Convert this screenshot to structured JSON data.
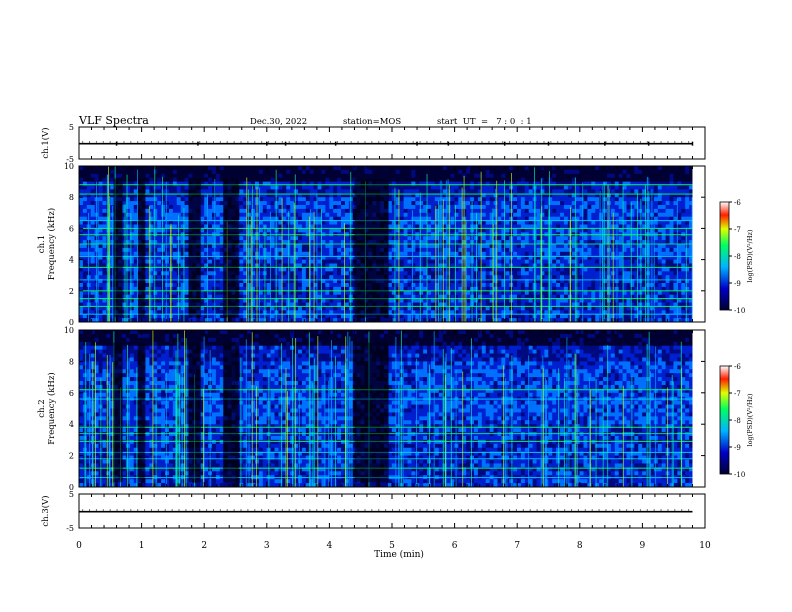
{
  "header": {
    "title": "VLF Spectra",
    "date": "Dec.30, 2022",
    "station": "station=MOS",
    "start": "start  UT  =   7 : 0  : 1"
  },
  "chart_data": [
    {
      "type": "line",
      "name": "ch1-voltage",
      "ylabel": "ch.1(V)",
      "ylim": [
        -5,
        5
      ],
      "yticks": [
        "5",
        "-5"
      ],
      "x_range_min": [
        0,
        9.8
      ],
      "trace_level": -0.2,
      "spikes_min": [
        0.6,
        1.9,
        3.0,
        3.3,
        4.1,
        5.4,
        5.9,
        6.8,
        7.5,
        8.4,
        9.1,
        9.8
      ]
    },
    {
      "type": "heatmap",
      "name": "ch1-spectrogram",
      "ylabel": "ch.1\nFrequency  (kHz)",
      "ylim": [
        0,
        10
      ],
      "yticks": [
        "0",
        "2",
        "4",
        "6",
        "8",
        "10"
      ],
      "colorbar": {
        "label": "log(PSD)(V²/Hz)",
        "range": [
          -10,
          -6
        ],
        "ticks": [
          "-6",
          "-7",
          "-8",
          "-9",
          "-10"
        ]
      },
      "bands_khz": [
        0.5,
        1.0,
        1.5,
        2.0,
        2.7,
        3.5,
        4.2,
        5.0,
        5.6,
        6.0,
        6.5,
        8.2,
        8.8
      ],
      "gaps_min": [
        [
          0.55,
          0.7
        ],
        [
          0.95,
          1.05
        ],
        [
          1.75,
          1.95
        ],
        [
          2.3,
          2.55
        ],
        [
          4.4,
          4.95
        ]
      ]
    },
    {
      "type": "heatmap",
      "name": "ch2-spectrogram",
      "ylabel": "ch.2\nFrequency  (kHz)",
      "ylim": [
        0,
        10
      ],
      "yticks": [
        "0",
        "2",
        "4",
        "6",
        "8",
        "10"
      ],
      "colorbar": {
        "label": "log(PSD)(V²/Hz)",
        "range": [
          -10,
          -6
        ],
        "ticks": [
          "-6",
          "-7",
          "-8",
          "-9",
          "-10"
        ]
      },
      "bands_khz": [
        0.6,
        1.2,
        1.8,
        2.2,
        2.9,
        3.4,
        3.8,
        5.6,
        6.2
      ],
      "gaps_min": [
        [
          0.55,
          0.7
        ],
        [
          0.95,
          1.05
        ],
        [
          1.75,
          1.95
        ],
        [
          2.3,
          2.55
        ],
        [
          4.4,
          4.95
        ]
      ]
    },
    {
      "type": "line",
      "name": "ch3-voltage",
      "ylabel": "ch.3(V)",
      "ylim": [
        -5,
        5
      ],
      "yticks": [
        "5",
        "-5"
      ],
      "x_range_min": [
        0,
        9.8
      ],
      "trace_level": -0.2,
      "spikes_min": []
    }
  ],
  "xaxis": {
    "label": "Time  (min)",
    "range": [
      0,
      10
    ],
    "ticks": [
      "0",
      "1",
      "2",
      "3",
      "4",
      "5",
      "6",
      "7",
      "8",
      "9",
      "10"
    ]
  }
}
